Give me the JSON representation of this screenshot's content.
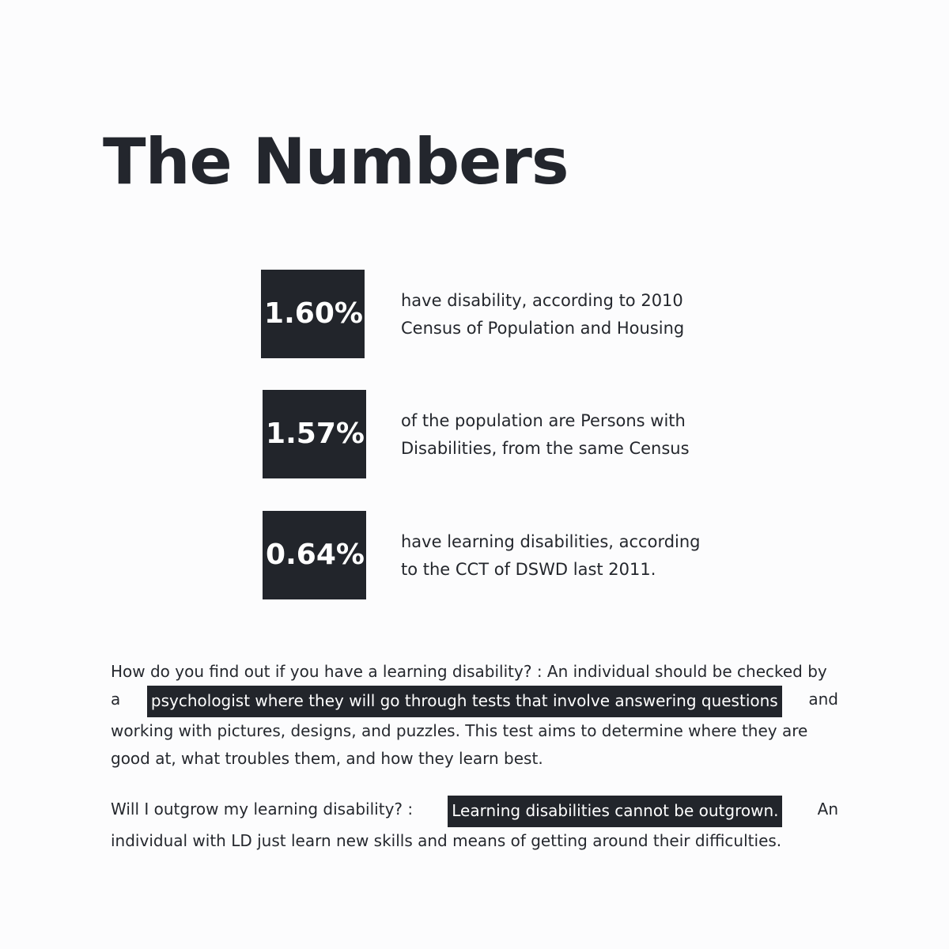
{
  "title": "The Numbers",
  "stats": [
    {
      "value": "1.60%",
      "description_lines": [
        "have disability, according to 2010",
        "Census of Population and Housing"
      ]
    },
    {
      "value": "1.57%",
      "description_lines": [
        "of the population are Persons with",
        "Disabilities, from the same Census"
      ]
    },
    {
      "value": "0.64%",
      "description_lines": [
        "have learning disabilities, according",
        "to the CCT of DSWD last 2011."
      ]
    }
  ],
  "paragraphs": {
    "diagnosis": {
      "line1": "How do you find out if you have a learning disability? : An individual should be checked by",
      "line2_prefix": "a",
      "line2_highlight": "psychologist where they will go through tests that involve answering questions",
      "line2_suffix": "and",
      "line3": "working with pictures, designs, and puzzles. This test aims to determine where they are",
      "line4": "good at, what troubles them, and how they learn best."
    },
    "outgrow": {
      "line1_prefix": "Will I outgrow my learning disability? :",
      "line1_highlight": "Learning disabilities cannot be outgrown.",
      "line1_suffix": "An",
      "line2": "individual with LD just learn new skills and means of getting around their difficulties."
    }
  },
  "colors": {
    "background": "#fcfcfd",
    "box_fill": "#22252b",
    "text": "#22252b",
    "box_text": "#ffffff"
  }
}
